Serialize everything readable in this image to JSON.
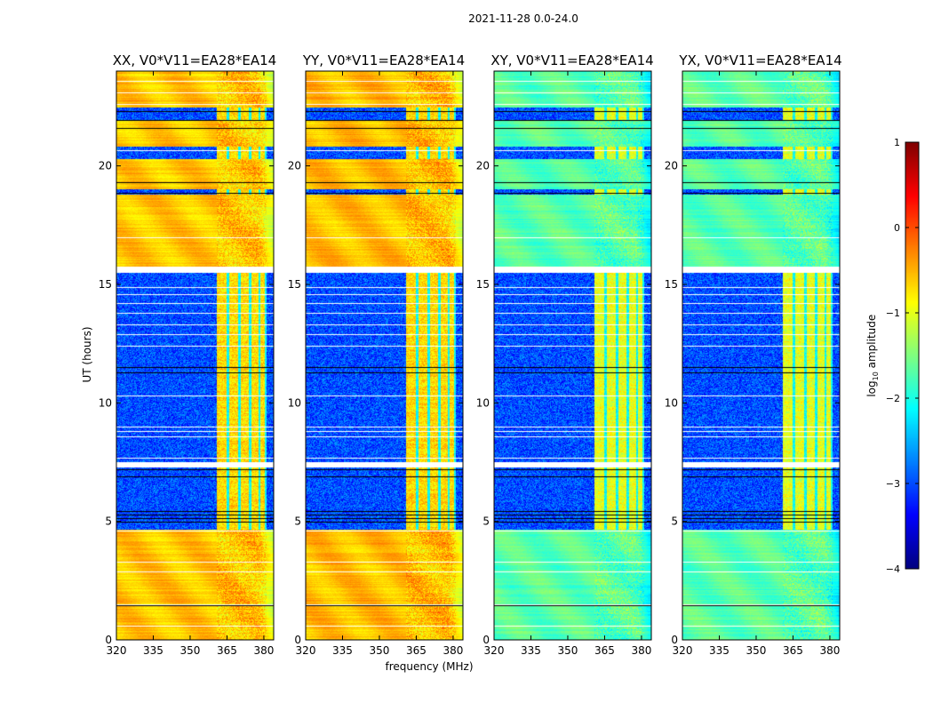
{
  "chart_data": {
    "type": "heatmap",
    "title": "2021-11-28 0.0-24.0",
    "xlabel": "frequency (MHz)",
    "ylabel": "UT (hours)",
    "xlim": [
      320,
      384
    ],
    "ylim": [
      0,
      24
    ],
    "xticks": [
      320,
      335,
      350,
      365,
      380
    ],
    "yticks": [
      0,
      5,
      10,
      15,
      20
    ],
    "colorbar": {
      "label_main": "log",
      "label_sub": "10",
      "label_rest": " amplitude",
      "range": [
        -4,
        1
      ],
      "ticks": [
        -4,
        -3,
        -2,
        -1,
        0,
        1
      ],
      "tick_labels": [
        "−4",
        "−3",
        "−2",
        "−1",
        "0",
        "1"
      ],
      "colormap": "jet"
    },
    "panels": [
      {
        "title": "XX, V0*V11=EA28*EA14",
        "high_level": -0.6,
        "low_level": -3.0,
        "rfi_level": -0.7
      },
      {
        "title": "YY, V0*V11=EA28*EA14",
        "high_level": -0.55,
        "low_level": -3.0,
        "rfi_level": -0.7
      },
      {
        "title": "XY, V0*V11=EA28*EA14",
        "high_level": -1.7,
        "low_level": -3.0,
        "rfi_level": -1.0
      },
      {
        "title": "YX, V0*V11=EA28*EA14",
        "high_level": -1.7,
        "low_level": -3.0,
        "rfi_level": -1.0
      }
    ],
    "time_segments_hours": [
      {
        "start": 0,
        "end": 4.65,
        "state": "high"
      },
      {
        "start": 4.65,
        "end": 7.3,
        "state": "low"
      },
      {
        "start": 7.5,
        "end": 15.5,
        "state": "low"
      },
      {
        "start": 15.75,
        "end": 18.8,
        "state": "high"
      },
      {
        "start": 18.8,
        "end": 19.0,
        "state": "low"
      },
      {
        "start": 19.0,
        "end": 20.3,
        "state": "high"
      },
      {
        "start": 20.3,
        "end": 20.8,
        "state": "low"
      },
      {
        "start": 20.8,
        "end": 21.9,
        "state": "high"
      },
      {
        "start": 21.9,
        "end": 22.45,
        "state": "low"
      },
      {
        "start": 22.45,
        "end": 24,
        "state": "high"
      }
    ],
    "rfi_bands_mhz": [
      [
        361,
        365
      ],
      [
        366,
        369.5
      ],
      [
        370.5,
        374
      ],
      [
        375,
        377.8
      ],
      [
        378.4,
        380.5
      ]
    ],
    "flagged_hours": [
      0.6,
      1.5,
      2.9,
      3.3,
      4.62,
      7.3,
      7.35,
      7.4,
      7.45,
      7.7,
      8.6,
      8.8,
      9.0,
      10.3,
      12.4,
      12.9,
      13.3,
      13.8,
      14.2,
      14.6,
      14.9,
      15.6,
      17.0,
      20.65,
      22.6,
      23.1,
      23.6
    ],
    "black_line_hours": [
      1.45,
      5.0,
      5.15,
      5.3,
      5.45,
      6.9,
      7.2,
      11.3,
      11.5,
      15.55,
      15.75,
      18.85,
      19.3,
      21.6,
      21.95,
      22.3
    ]
  }
}
